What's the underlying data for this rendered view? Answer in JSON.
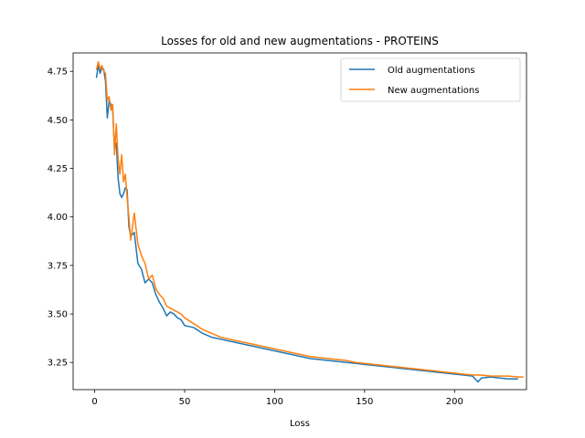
{
  "chart_data": {
    "type": "line",
    "title": "Losses for old and new augmentations - PROTEINS",
    "xlabel": "Loss",
    "ylabel": "",
    "xlim": [
      -12,
      240
    ],
    "ylim": [
      3.11,
      4.845
    ],
    "xticks": [
      0,
      50,
      100,
      150,
      200
    ],
    "yticks": [
      3.25,
      3.5,
      3.75,
      4.0,
      4.25,
      4.5,
      4.75
    ],
    "ytick_labels": [
      "3.25",
      "3.50",
      "3.75",
      "4.00",
      "4.25",
      "4.50",
      "4.75"
    ],
    "grid": false,
    "legend_position": "top-right",
    "series": [
      {
        "name": "Old augmentations",
        "color": "#1f77b4",
        "points": [
          [
            1,
            4.72
          ],
          [
            2,
            4.78
          ],
          [
            3,
            4.74
          ],
          [
            4,
            4.77
          ],
          [
            5,
            4.76
          ],
          [
            6,
            4.7
          ],
          [
            7,
            4.51
          ],
          [
            8,
            4.6
          ],
          [
            9,
            4.58
          ],
          [
            10,
            4.55
          ],
          [
            11,
            4.35
          ],
          [
            12,
            4.38
          ],
          [
            13,
            4.2
          ],
          [
            14,
            4.12
          ],
          [
            15,
            4.1
          ],
          [
            16,
            4.12
          ],
          [
            17,
            4.15
          ],
          [
            18,
            4.14
          ],
          [
            19,
            3.95
          ],
          [
            20,
            3.9
          ],
          [
            22,
            3.92
          ],
          [
            24,
            3.76
          ],
          [
            26,
            3.73
          ],
          [
            28,
            3.66
          ],
          [
            30,
            3.68
          ],
          [
            32,
            3.66
          ],
          [
            34,
            3.6
          ],
          [
            36,
            3.56
          ],
          [
            38,
            3.53
          ],
          [
            40,
            3.49
          ],
          [
            42,
            3.51
          ],
          [
            44,
            3.5
          ],
          [
            46,
            3.48
          ],
          [
            48,
            3.47
          ],
          [
            50,
            3.44
          ],
          [
            55,
            3.43
          ],
          [
            60,
            3.4
          ],
          [
            65,
            3.38
          ],
          [
            70,
            3.37
          ],
          [
            75,
            3.36
          ],
          [
            80,
            3.35
          ],
          [
            85,
            3.34
          ],
          [
            90,
            3.33
          ],
          [
            95,
            3.32
          ],
          [
            100,
            3.31
          ],
          [
            105,
            3.3
          ],
          [
            110,
            3.29
          ],
          [
            115,
            3.28
          ],
          [
            120,
            3.27
          ],
          [
            125,
            3.265
          ],
          [
            130,
            3.26
          ],
          [
            135,
            3.255
          ],
          [
            140,
            3.25
          ],
          [
            145,
            3.245
          ],
          [
            150,
            3.24
          ],
          [
            155,
            3.235
          ],
          [
            160,
            3.23
          ],
          [
            165,
            3.225
          ],
          [
            170,
            3.22
          ],
          [
            175,
            3.215
          ],
          [
            180,
            3.21
          ],
          [
            185,
            3.205
          ],
          [
            190,
            3.2
          ],
          [
            195,
            3.195
          ],
          [
            200,
            3.19
          ],
          [
            205,
            3.185
          ],
          [
            210,
            3.18
          ],
          [
            213,
            3.15
          ],
          [
            215,
            3.17
          ],
          [
            220,
            3.175
          ],
          [
            225,
            3.17
          ],
          [
            230,
            3.165
          ],
          [
            235,
            3.165
          ]
        ]
      },
      {
        "name": "New augmentations",
        "color": "#ff7f0e",
        "points": [
          [
            1,
            4.76
          ],
          [
            2,
            4.8
          ],
          [
            3,
            4.76
          ],
          [
            4,
            4.78
          ],
          [
            5,
            4.75
          ],
          [
            6,
            4.74
          ],
          [
            7,
            4.6
          ],
          [
            8,
            4.62
          ],
          [
            9,
            4.55
          ],
          [
            10,
            4.58
          ],
          [
            11,
            4.32
          ],
          [
            12,
            4.48
          ],
          [
            13,
            4.3
          ],
          [
            14,
            4.22
          ],
          [
            15,
            4.32
          ],
          [
            16,
            4.18
          ],
          [
            17,
            4.22
          ],
          [
            18,
            4.1
          ],
          [
            19,
            4.0
          ],
          [
            20,
            3.88
          ],
          [
            22,
            4.02
          ],
          [
            24,
            3.86
          ],
          [
            26,
            3.8
          ],
          [
            28,
            3.76
          ],
          [
            30,
            3.68
          ],
          [
            32,
            3.7
          ],
          [
            34,
            3.63
          ],
          [
            36,
            3.6
          ],
          [
            38,
            3.58
          ],
          [
            40,
            3.54
          ],
          [
            42,
            3.53
          ],
          [
            44,
            3.52
          ],
          [
            46,
            3.51
          ],
          [
            48,
            3.5
          ],
          [
            50,
            3.48
          ],
          [
            55,
            3.45
          ],
          [
            60,
            3.42
          ],
          [
            65,
            3.4
          ],
          [
            70,
            3.38
          ],
          [
            75,
            3.37
          ],
          [
            80,
            3.36
          ],
          [
            85,
            3.35
          ],
          [
            90,
            3.34
          ],
          [
            95,
            3.33
          ],
          [
            100,
            3.32
          ],
          [
            105,
            3.31
          ],
          [
            110,
            3.3
          ],
          [
            115,
            3.29
          ],
          [
            120,
            3.28
          ],
          [
            125,
            3.275
          ],
          [
            130,
            3.27
          ],
          [
            135,
            3.265
          ],
          [
            140,
            3.26
          ],
          [
            145,
            3.25
          ],
          [
            150,
            3.245
          ],
          [
            155,
            3.24
          ],
          [
            160,
            3.235
          ],
          [
            165,
            3.23
          ],
          [
            170,
            3.225
          ],
          [
            175,
            3.22
          ],
          [
            180,
            3.215
          ],
          [
            185,
            3.21
          ],
          [
            190,
            3.205
          ],
          [
            195,
            3.2
          ],
          [
            200,
            3.195
          ],
          [
            205,
            3.19
          ],
          [
            210,
            3.185
          ],
          [
            215,
            3.185
          ],
          [
            220,
            3.18
          ],
          [
            225,
            3.18
          ],
          [
            230,
            3.18
          ],
          [
            235,
            3.175
          ],
          [
            238,
            3.175
          ]
        ]
      }
    ]
  }
}
